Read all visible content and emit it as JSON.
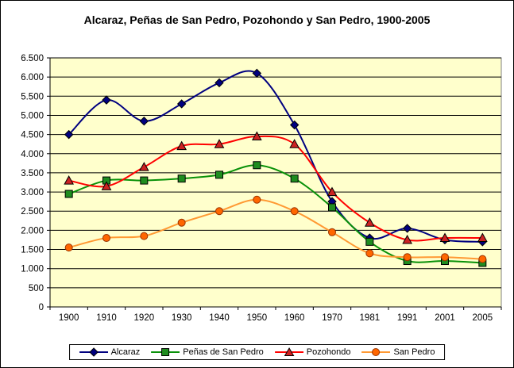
{
  "chart_data": {
    "type": "line",
    "title": "Alcaraz, Peñas de San Pedro, Pozohondo y San Pedro, 1900-2005",
    "categories": [
      "1900",
      "1910",
      "1920",
      "1930",
      "1940",
      "1950",
      "1960",
      "1970",
      "1981",
      "1991",
      "2001",
      "2005"
    ],
    "series": [
      {
        "name": "Alcaraz",
        "marker": "diamond",
        "line_color": "#000080",
        "marker_color": "#000080",
        "marker_edge": "#000000",
        "values": [
          4500,
          5400,
          4850,
          5300,
          5850,
          6100,
          4750,
          2750,
          1800,
          2050,
          1750,
          1700
        ]
      },
      {
        "name": "Peñas de San Pedro",
        "marker": "square",
        "line_color": "#089108",
        "marker_color": "#1F8C1F",
        "marker_edge": "#000000",
        "values": [
          2950,
          3300,
          3300,
          3350,
          3450,
          3700,
          3350,
          2600,
          1700,
          1200,
          1200,
          1150
        ]
      },
      {
        "name": "Pozohondo",
        "marker": "triangle",
        "line_color": "#FF0000",
        "marker_color": "#CC2222",
        "marker_edge": "#000000",
        "values": [
          3300,
          3150,
          3650,
          4200,
          4250,
          4450,
          4250,
          3000,
          2200,
          1750,
          1800,
          1800
        ]
      },
      {
        "name": "San Pedro",
        "marker": "circle",
        "line_color": "#FF9933",
        "marker_color": "#FF6600",
        "marker_edge": "#993300",
        "values": [
          1550,
          1800,
          1850,
          2200,
          2500,
          2800,
          2500,
          1950,
          1400,
          1300,
          1300,
          1250
        ]
      }
    ],
    "ylim": [
      0,
      6500
    ],
    "ytick_step": 500,
    "ytick_labels": [
      "0",
      "500",
      "1.000",
      "1.500",
      "2.000",
      "2.500",
      "3.000",
      "3.500",
      "4.000",
      "4.500",
      "5.000",
      "5.500",
      "6.000",
      "6.500"
    ],
    "grid": true,
    "legend_position": "bottom",
    "colors": {
      "plot_bg": "#FFFFCC",
      "plot_border": "#808080",
      "axis": "#000000",
      "gridline": "#000000",
      "chart_bg": "#FFFFFF"
    }
  }
}
